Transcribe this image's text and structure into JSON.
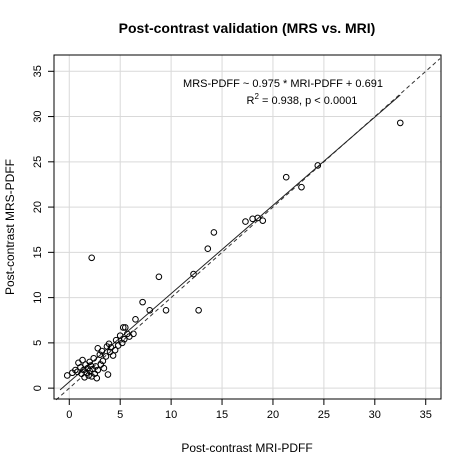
{
  "chart_data": {
    "type": "scatter",
    "title": "Post-contrast validation (MRS vs. MRI)",
    "xlabel": "Post-contrast MRI-PDFF",
    "ylabel": "Post-contrast MRS-PDFF",
    "xlim": [
      -1.5,
      36.5
    ],
    "ylim": [
      -1.2,
      36.8
    ],
    "x_ticks": [
      0,
      5,
      10,
      15,
      20,
      25,
      30,
      35
    ],
    "y_ticks": [
      0,
      5,
      10,
      15,
      20,
      25,
      30,
      35
    ],
    "grid": true,
    "annotations": {
      "equation": "MRS-PDFF ~ 0.975 * MRI-PDFF + 0.691",
      "r2_prefix": "R",
      "r2_sup": "2",
      "r2_suffix": " = 0.938, p < 0.0001"
    },
    "fit_line": {
      "slope": 0.975,
      "intercept": 0.691,
      "x_range": [
        -0.9,
        32.5
      ],
      "style": "solid"
    },
    "identity_line": {
      "slope": 1,
      "intercept": 0,
      "x_range": [
        -1.3,
        36.4
      ],
      "style": "dashed"
    },
    "points": [
      {
        "x": -0.2,
        "y": 1.4
      },
      {
        "x": 0.3,
        "y": 1.7
      },
      {
        "x": 0.6,
        "y": 2.0
      },
      {
        "x": 0.8,
        "y": 1.8
      },
      {
        "x": 0.9,
        "y": 2.8
      },
      {
        "x": 1.1,
        "y": 2.3
      },
      {
        "x": 1.2,
        "y": 1.6
      },
      {
        "x": 1.3,
        "y": 3.1
      },
      {
        "x": 1.4,
        "y": 2.0
      },
      {
        "x": 1.5,
        "y": 1.2
      },
      {
        "x": 1.6,
        "y": 2.6
      },
      {
        "x": 1.7,
        "y": 1.7
      },
      {
        "x": 1.8,
        "y": 2.2
      },
      {
        "x": 1.9,
        "y": 1.4
      },
      {
        "x": 2.0,
        "y": 2.9
      },
      {
        "x": 2.0,
        "y": 1.9
      },
      {
        "x": 2.1,
        "y": 2.5
      },
      {
        "x": 2.2,
        "y": 1.3
      },
      {
        "x": 2.2,
        "y": 14.4
      },
      {
        "x": 2.3,
        "y": 2.1
      },
      {
        "x": 2.4,
        "y": 3.3
      },
      {
        "x": 2.5,
        "y": 1.6
      },
      {
        "x": 2.6,
        "y": 2.4
      },
      {
        "x": 2.7,
        "y": 1.1
      },
      {
        "x": 2.8,
        "y": 4.4
      },
      {
        "x": 2.8,
        "y": 2.0
      },
      {
        "x": 3.0,
        "y": 3.7
      },
      {
        "x": 3.1,
        "y": 2.6
      },
      {
        "x": 3.2,
        "y": 4.1
      },
      {
        "x": 3.3,
        "y": 3.0
      },
      {
        "x": 3.4,
        "y": 2.2
      },
      {
        "x": 3.6,
        "y": 3.5
      },
      {
        "x": 3.7,
        "y": 4.6
      },
      {
        "x": 3.8,
        "y": 1.5
      },
      {
        "x": 3.9,
        "y": 4.9
      },
      {
        "x": 4.0,
        "y": 4.0
      },
      {
        "x": 4.1,
        "y": 4.5
      },
      {
        "x": 4.3,
        "y": 3.6
      },
      {
        "x": 4.5,
        "y": 4.2
      },
      {
        "x": 4.6,
        "y": 5.3
      },
      {
        "x": 4.8,
        "y": 4.7
      },
      {
        "x": 5.0,
        "y": 5.8
      },
      {
        "x": 5.2,
        "y": 5.0
      },
      {
        "x": 5.3,
        "y": 6.7
      },
      {
        "x": 5.4,
        "y": 5.4
      },
      {
        "x": 5.5,
        "y": 6.7
      },
      {
        "x": 5.7,
        "y": 6.0
      },
      {
        "x": 5.9,
        "y": 5.7
      },
      {
        "x": 6.3,
        "y": 6.0
      },
      {
        "x": 6.5,
        "y": 7.6
      },
      {
        "x": 7.2,
        "y": 9.5
      },
      {
        "x": 7.9,
        "y": 8.6
      },
      {
        "x": 8.8,
        "y": 12.3
      },
      {
        "x": 9.5,
        "y": 8.6
      },
      {
        "x": 12.2,
        "y": 12.6
      },
      {
        "x": 12.7,
        "y": 8.6
      },
      {
        "x": 13.6,
        "y": 15.4
      },
      {
        "x": 14.2,
        "y": 17.2
      },
      {
        "x": 17.3,
        "y": 18.4
      },
      {
        "x": 18.0,
        "y": 18.7
      },
      {
        "x": 18.5,
        "y": 18.8
      },
      {
        "x": 19.0,
        "y": 18.5
      },
      {
        "x": 21.3,
        "y": 23.3
      },
      {
        "x": 22.8,
        "y": 22.2
      },
      {
        "x": 24.4,
        "y": 24.6
      },
      {
        "x": 32.5,
        "y": 29.3
      }
    ]
  }
}
